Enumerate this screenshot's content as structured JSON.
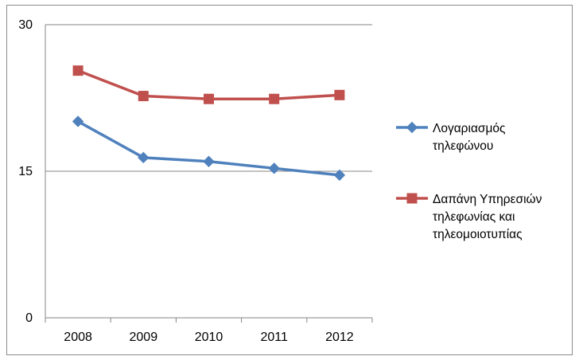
{
  "chart_data": {
    "type": "line",
    "title": "",
    "xlabel": "",
    "ylabel": "",
    "categories": [
      "2008",
      "2009",
      "2010",
      "2011",
      "2012"
    ],
    "ylim": [
      0,
      30
    ],
    "yticks": [
      0,
      15,
      30
    ],
    "grid": "horizontal",
    "legend_position": "right",
    "series": [
      {
        "name": "Λογαριασμός τηλεφώνου",
        "name_lines": [
          "Λογαριασμός",
          "τηλεφώνου"
        ],
        "color": "#4F81BD",
        "marker": "diamond",
        "values": [
          20.1,
          16.4,
          16.0,
          15.3,
          14.6
        ]
      },
      {
        "name": "Δαπάνη Υπηρεσιών τηλεφωνίας και τηλεομοιοτυπίας",
        "name_lines": [
          "Δαπάνη Υπηρεσιών",
          "τηλεφωνίας και",
          "τηλεομοιοτυπίας"
        ],
        "color": "#C0504D",
        "marker": "square",
        "values": [
          25.3,
          22.7,
          22.4,
          22.4,
          22.8
        ]
      }
    ]
  }
}
